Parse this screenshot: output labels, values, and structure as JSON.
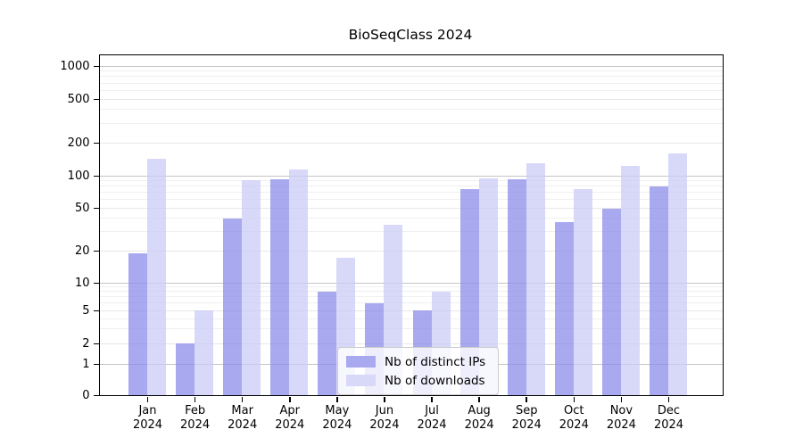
{
  "page": {
    "title": "BioSeqClass 2024"
  },
  "chart_data": {
    "type": "bar",
    "title": "BioSeqClass 2024",
    "x_year": "2024",
    "categories": [
      "Jan",
      "Feb",
      "Mar",
      "Apr",
      "May",
      "Jun",
      "Jul",
      "Aug",
      "Sep",
      "Oct",
      "Nov",
      "Dec"
    ],
    "series": [
      {
        "name": "Nb of distinct IPs",
        "color": "#a9a9f0",
        "values": [
          19,
          2,
          40,
          93,
          8,
          6,
          5,
          75,
          92,
          37,
          49,
          79
        ]
      },
      {
        "name": "Nb of downloads",
        "color": "#d8d8f8",
        "values": [
          142,
          5,
          90,
          114,
          17,
          35,
          8,
          94,
          130,
          75,
          123,
          160
        ]
      }
    ],
    "yticks": [
      0,
      1,
      2,
      5,
      10,
      20,
      50,
      100,
      200,
      500,
      1000
    ],
    "yscale": "log",
    "ylim": [
      0,
      1400
    ],
    "xlabel": "",
    "ylabel": "",
    "grid": true,
    "legend_position": "lower center"
  }
}
